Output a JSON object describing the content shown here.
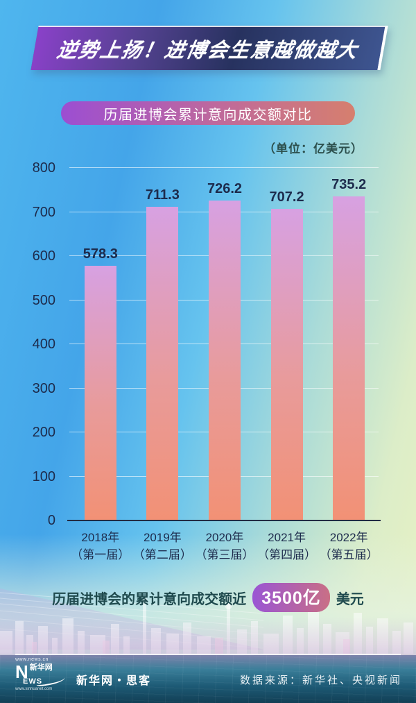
{
  "header": {
    "title": "逆势上扬！进博会生意越做越大"
  },
  "chart_title": "历届进博会累计意向成交额对比",
  "unit_label": "（单位：亿美元）",
  "chart_data": {
    "type": "bar",
    "title": "历届进博会累计意向成交额对比",
    "unit": "亿美元",
    "categories": [
      "2018年",
      "2019年",
      "2020年",
      "2021年",
      "2022年"
    ],
    "category_sublabels": [
      "（第一届）",
      "（第二届）",
      "（第三届）",
      "（第四届）",
      "（第五届）"
    ],
    "values": [
      578.3,
      711.3,
      726.2,
      707.2,
      735.2
    ],
    "ylim": [
      0,
      800
    ],
    "yticks": [
      0,
      100,
      200,
      300,
      400,
      500,
      600,
      700,
      800
    ],
    "grid": true,
    "legend_position": "none"
  },
  "summary": {
    "prefix": "历届进博会的累计意向成交额近",
    "highlight": "3500亿",
    "suffix": "美元"
  },
  "footer": {
    "logo": {
      "site_url": "www.news.cn",
      "letter_n": "N",
      "brand_cn": "新华网",
      "letters_ews": "EWS",
      "site_url_2": "www.xinhuanet.com"
    },
    "brand_text": "新华网・思客",
    "source_text": "数据来源：新华社、央视新闻"
  },
  "colors": {
    "banner_purple": "#8a41c9",
    "banner_navy": "#27325f",
    "banner_slate": "#3e5590",
    "pill_purple": "#9c4ed2",
    "pill_pink": "#c06a9a",
    "pill_salmon": "#d67f6e",
    "bar_top": "#d7a1e2",
    "bar_mid": "#e89b9b",
    "bar_bottom": "#f29175",
    "axis_text": "#1d2b4c",
    "unit_text": "#2c4f4c",
    "summary_text": "#1f4a4e",
    "footer_dark": "#123f55"
  }
}
